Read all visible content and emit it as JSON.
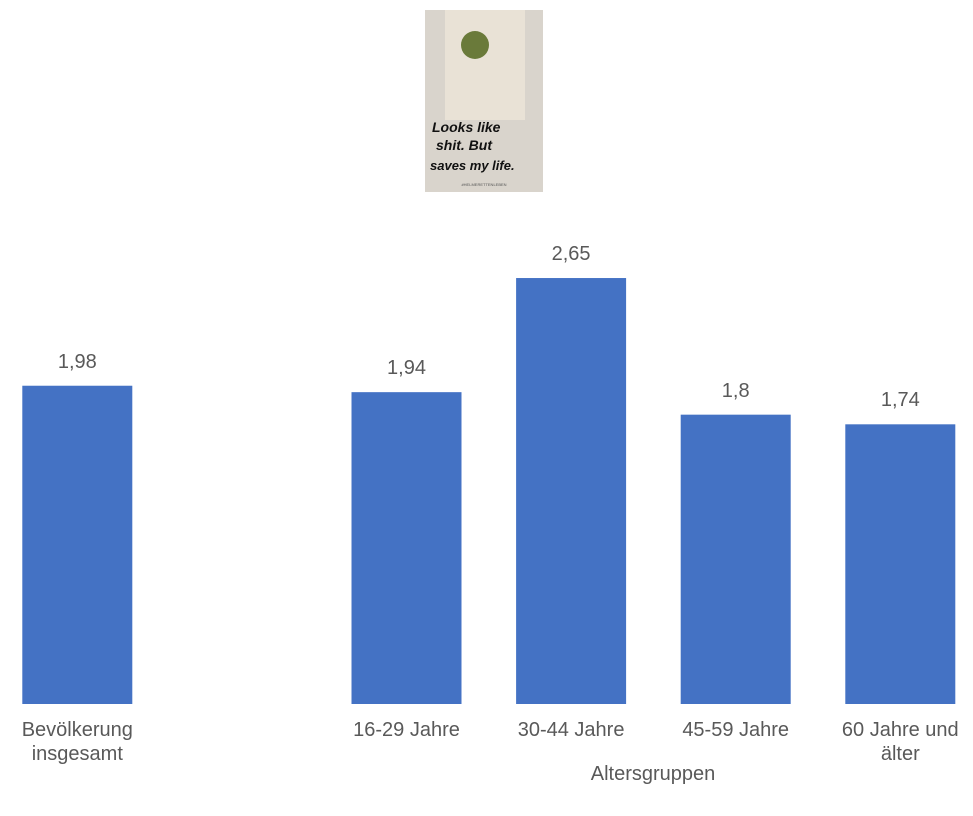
{
  "poster": {
    "lines": [
      "Looks like",
      "shit. But",
      "saves my life."
    ],
    "hashtag": "#HELMERETTENLEBEN"
  },
  "chart_data": {
    "type": "bar",
    "categories": [
      "Bevölkerung insgesamt",
      null,
      "16-29 Jahre",
      "30-44 Jahre",
      "45-59 Jahre",
      "60 Jahre und älter"
    ],
    "values": [
      1.98,
      null,
      1.94,
      2.65,
      1.8,
      1.74
    ],
    "value_labels": [
      "1,98",
      null,
      "1,94",
      "2,65",
      "1,8",
      "1,74"
    ],
    "color": "#4472c4",
    "x_label": "Altersgruppen",
    "ylim": [
      0,
      2.7
    ]
  }
}
